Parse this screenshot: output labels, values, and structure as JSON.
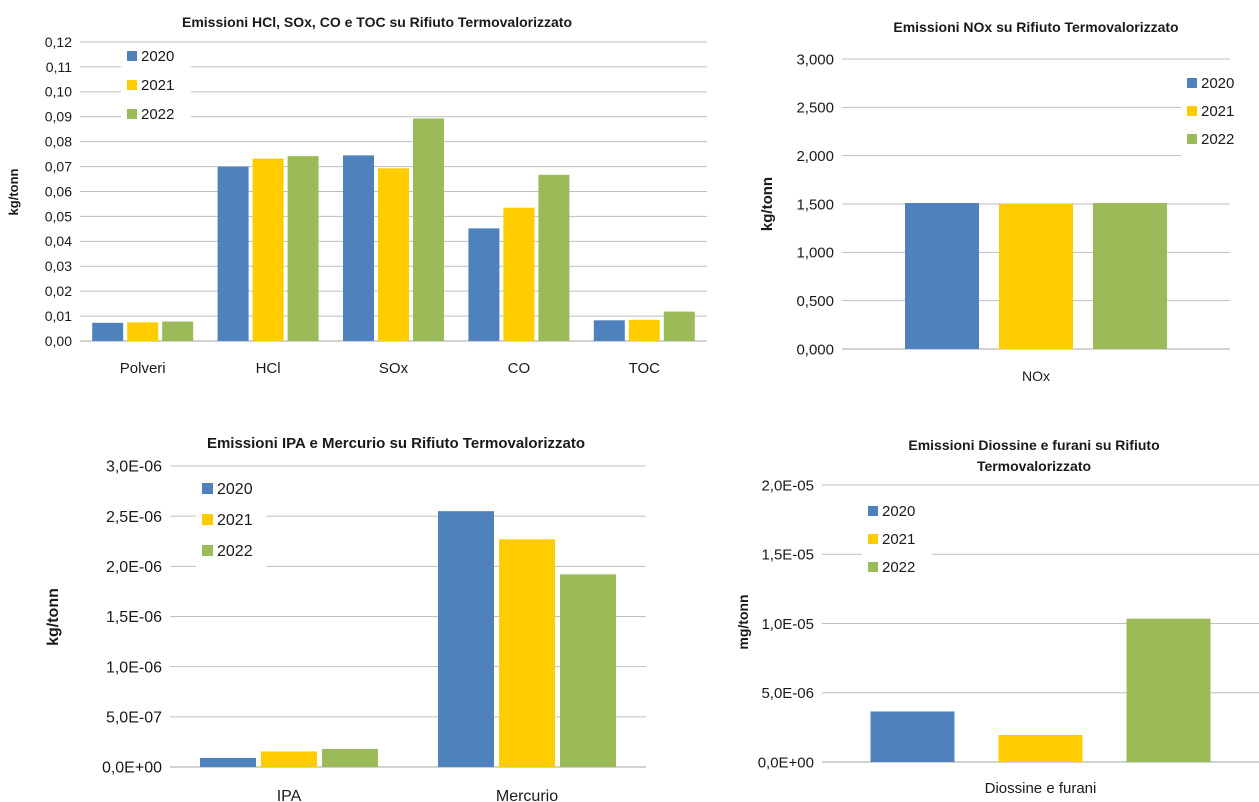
{
  "colors": {
    "2020": "#4f81bd",
    "2021": "#ffcc00",
    "2022": "#9bbb59",
    "grid": "#bfbfbf",
    "axis": "#a6a6a6"
  },
  "chart_data": [
    {
      "type": "bar",
      "title": "Emissioni HCl, SOx, CO e TOC su Rifiuto Termovalorizzato",
      "ylabel": "kg/tonn",
      "categories": [
        "Polveri",
        "HCl",
        "SOx",
        "CO",
        "TOC"
      ],
      "ylim": [
        0,
        0.12
      ],
      "yticks": [
        "0,00",
        "0,01",
        "0,02",
        "0,03",
        "0,04",
        "0,05",
        "0,06",
        "0,07",
        "0,08",
        "0,09",
        "0,10",
        "0,11",
        "0,12"
      ],
      "series": [
        {
          "name": "2020",
          "values": [
            0.0073,
            0.07,
            0.0745,
            0.0452,
            0.0083
          ]
        },
        {
          "name": "2021",
          "values": [
            0.0075,
            0.0732,
            0.0693,
            0.0535,
            0.0085
          ]
        },
        {
          "name": "2022",
          "values": [
            0.0078,
            0.0742,
            0.0893,
            0.0667,
            0.0118
          ]
        }
      ],
      "legend": "top-left"
    },
    {
      "type": "bar",
      "title": "Emissioni NOx su Rifiuto Termovalorizzato",
      "ylabel": "kg/tonn",
      "categories": [
        "NOx"
      ],
      "ylim": [
        0,
        3.0
      ],
      "yticks": [
        "0,000",
        "0,500",
        "1,000",
        "1,500",
        "2,000",
        "2,500",
        "3,000"
      ],
      "series": [
        {
          "name": "2020",
          "values": [
            1.51
          ]
        },
        {
          "name": "2021",
          "values": [
            1.5
          ]
        },
        {
          "name": "2022",
          "values": [
            1.51
          ]
        }
      ],
      "legend": "top-right"
    },
    {
      "type": "bar",
      "title": "Emissioni IPA e Mercurio su Rifiuto Termovalorizzato",
      "ylabel": "kg/tonn",
      "categories": [
        "IPA",
        "Mercurio"
      ],
      "ylim": [
        0,
        3e-06
      ],
      "yticks": [
        "0,0E+00",
        "5,0E-07",
        "1,0E-06",
        "1,5E-06",
        "2,0E-06",
        "2,5E-06",
        "3,0E-06"
      ],
      "series": [
        {
          "name": "2020",
          "values": [
            9e-08,
            2.55e-06
          ]
        },
        {
          "name": "2021",
          "values": [
            1.55e-07,
            2.27e-06
          ]
        },
        {
          "name": "2022",
          "values": [
            1.8e-07,
            1.92e-06
          ]
        }
      ],
      "legend": "top-left"
    },
    {
      "type": "bar",
      "title": "Emissioni Diossine e furani su Rifiuto Termovalorizzato",
      "ylabel": "mg/tonn",
      "categories": [
        "Diossine e furani"
      ],
      "ylim": [
        0,
        2e-05
      ],
      "yticks": [
        "0,0E+00",
        "5,0E-06",
        "1,0E-05",
        "1,5E-05",
        "2,0E-05"
      ],
      "series": [
        {
          "name": "2020",
          "values": [
            3.65e-06
          ]
        },
        {
          "name": "2021",
          "values": [
            1.95e-06
          ]
        },
        {
          "name": "2022",
          "values": [
            1.035e-05
          ]
        }
      ],
      "legend": "top-left"
    }
  ]
}
